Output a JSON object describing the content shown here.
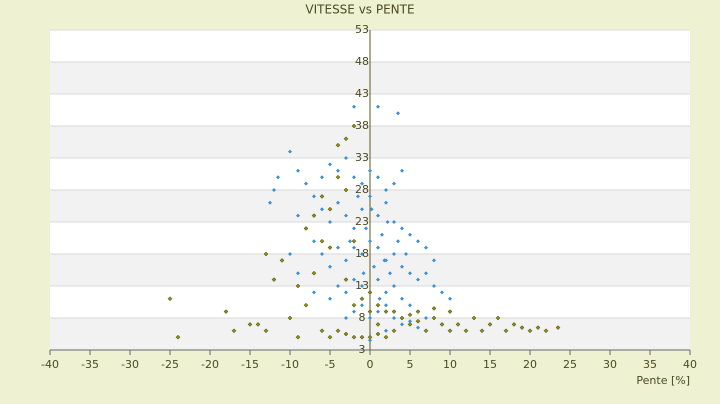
{
  "chart_data": {
    "type": "scatter",
    "title": "VITESSE vs PENTE",
    "x_label": "Pente [%]",
    "xlim": [
      -40,
      40
    ],
    "xticks": [
      -40,
      -35,
      -30,
      -25,
      -20,
      -15,
      -10,
      -5,
      0,
      5,
      10,
      15,
      20,
      25,
      30,
      35,
      40
    ],
    "ylim": [
      3,
      53
    ],
    "yticks": [
      3,
      8,
      13,
      18,
      23,
      28,
      33,
      38,
      43,
      48,
      53
    ],
    "grid": true,
    "series": [
      {
        "color": "#3d8fd6",
        "x": [
          -10,
          -11.5,
          -12,
          -9,
          -8,
          -7,
          -6,
          -5,
          -4,
          -3,
          -2,
          -1,
          0,
          1,
          2,
          3,
          4,
          3.5,
          1,
          -2,
          -9,
          -8,
          -7,
          -6,
          -5,
          -4,
          -3,
          -2,
          -1,
          0,
          1,
          2,
          3,
          4,
          5,
          6,
          7,
          8,
          -10,
          -9,
          -6,
          -5,
          -4,
          -3,
          -2,
          -1,
          0,
          1,
          2,
          3,
          4,
          5,
          6,
          7,
          8,
          9,
          10,
          -7,
          -5,
          -4,
          -3,
          -2,
          -1,
          0,
          1,
          2,
          3,
          4,
          5,
          6,
          7,
          8,
          -3,
          -2,
          -1,
          0,
          1,
          2,
          3,
          4,
          5,
          6,
          -1,
          0,
          1,
          2,
          0.5,
          1.5,
          2.5,
          -0.5,
          -1.5,
          3.5,
          4.5,
          1.2,
          2.2,
          -2.5,
          0.2,
          1.8,
          -12.5,
          -0.8
        ],
        "y": [
          34,
          30,
          28,
          31,
          29,
          27,
          30,
          32,
          31,
          33,
          30,
          29,
          31,
          30,
          28,
          29,
          31,
          40,
          41,
          41,
          24,
          22,
          20,
          25,
          23,
          26,
          24,
          22,
          25,
          27,
          24,
          26,
          23,
          22,
          21,
          20,
          19,
          17,
          18,
          15,
          18,
          16,
          19,
          17,
          19,
          18,
          20,
          19,
          17,
          18,
          16,
          15,
          14,
          15,
          13,
          12,
          11,
          12,
          11,
          13,
          12,
          14,
          13,
          12,
          14,
          12,
          13,
          11,
          10,
          9,
          8,
          8,
          8,
          9,
          10,
          8,
          9,
          10,
          8,
          7,
          7.5,
          6.5,
          5,
          4.5,
          5.5,
          6,
          16,
          21,
          15,
          22,
          27,
          20,
          18,
          11,
          23,
          20,
          25,
          17,
          26,
          15
        ]
      },
      {
        "color": "#8c8c10",
        "x": [
          -25,
          -24,
          -18,
          -17,
          -15,
          -13,
          -12,
          -13,
          -11,
          -10,
          -9,
          -8,
          -7,
          -6,
          -5,
          -4,
          -3,
          -2,
          -4,
          -3,
          -6,
          -5,
          -4,
          -3,
          -2,
          -1,
          0,
          1,
          2,
          3,
          4,
          5,
          6,
          7,
          8,
          9,
          10,
          11,
          12,
          13,
          14,
          15,
          16,
          17,
          18,
          19,
          20,
          21,
          22,
          23.5,
          -1,
          0,
          1,
          2,
          -2,
          3,
          -7,
          -8,
          -6,
          -5,
          -9,
          -3,
          -2,
          0,
          1,
          6,
          8,
          10,
          5,
          -14
        ],
        "y": [
          11,
          5,
          9,
          6,
          7,
          6,
          14,
          18,
          17,
          8,
          5,
          10,
          15,
          20,
          25,
          30,
          36,
          38,
          35,
          28,
          6,
          5,
          6,
          5.5,
          5,
          5,
          5,
          5.5,
          5,
          6,
          8,
          7,
          7.5,
          6,
          8,
          7,
          6,
          7,
          6,
          8,
          6,
          7,
          8,
          6,
          7,
          6.5,
          6,
          6.5,
          6,
          6.5,
          11,
          12,
          10,
          9,
          10,
          9,
          24,
          22,
          27,
          19,
          13,
          14,
          20,
          9,
          7,
          9,
          9.5,
          9,
          8.5,
          7
        ]
      }
    ]
  }
}
